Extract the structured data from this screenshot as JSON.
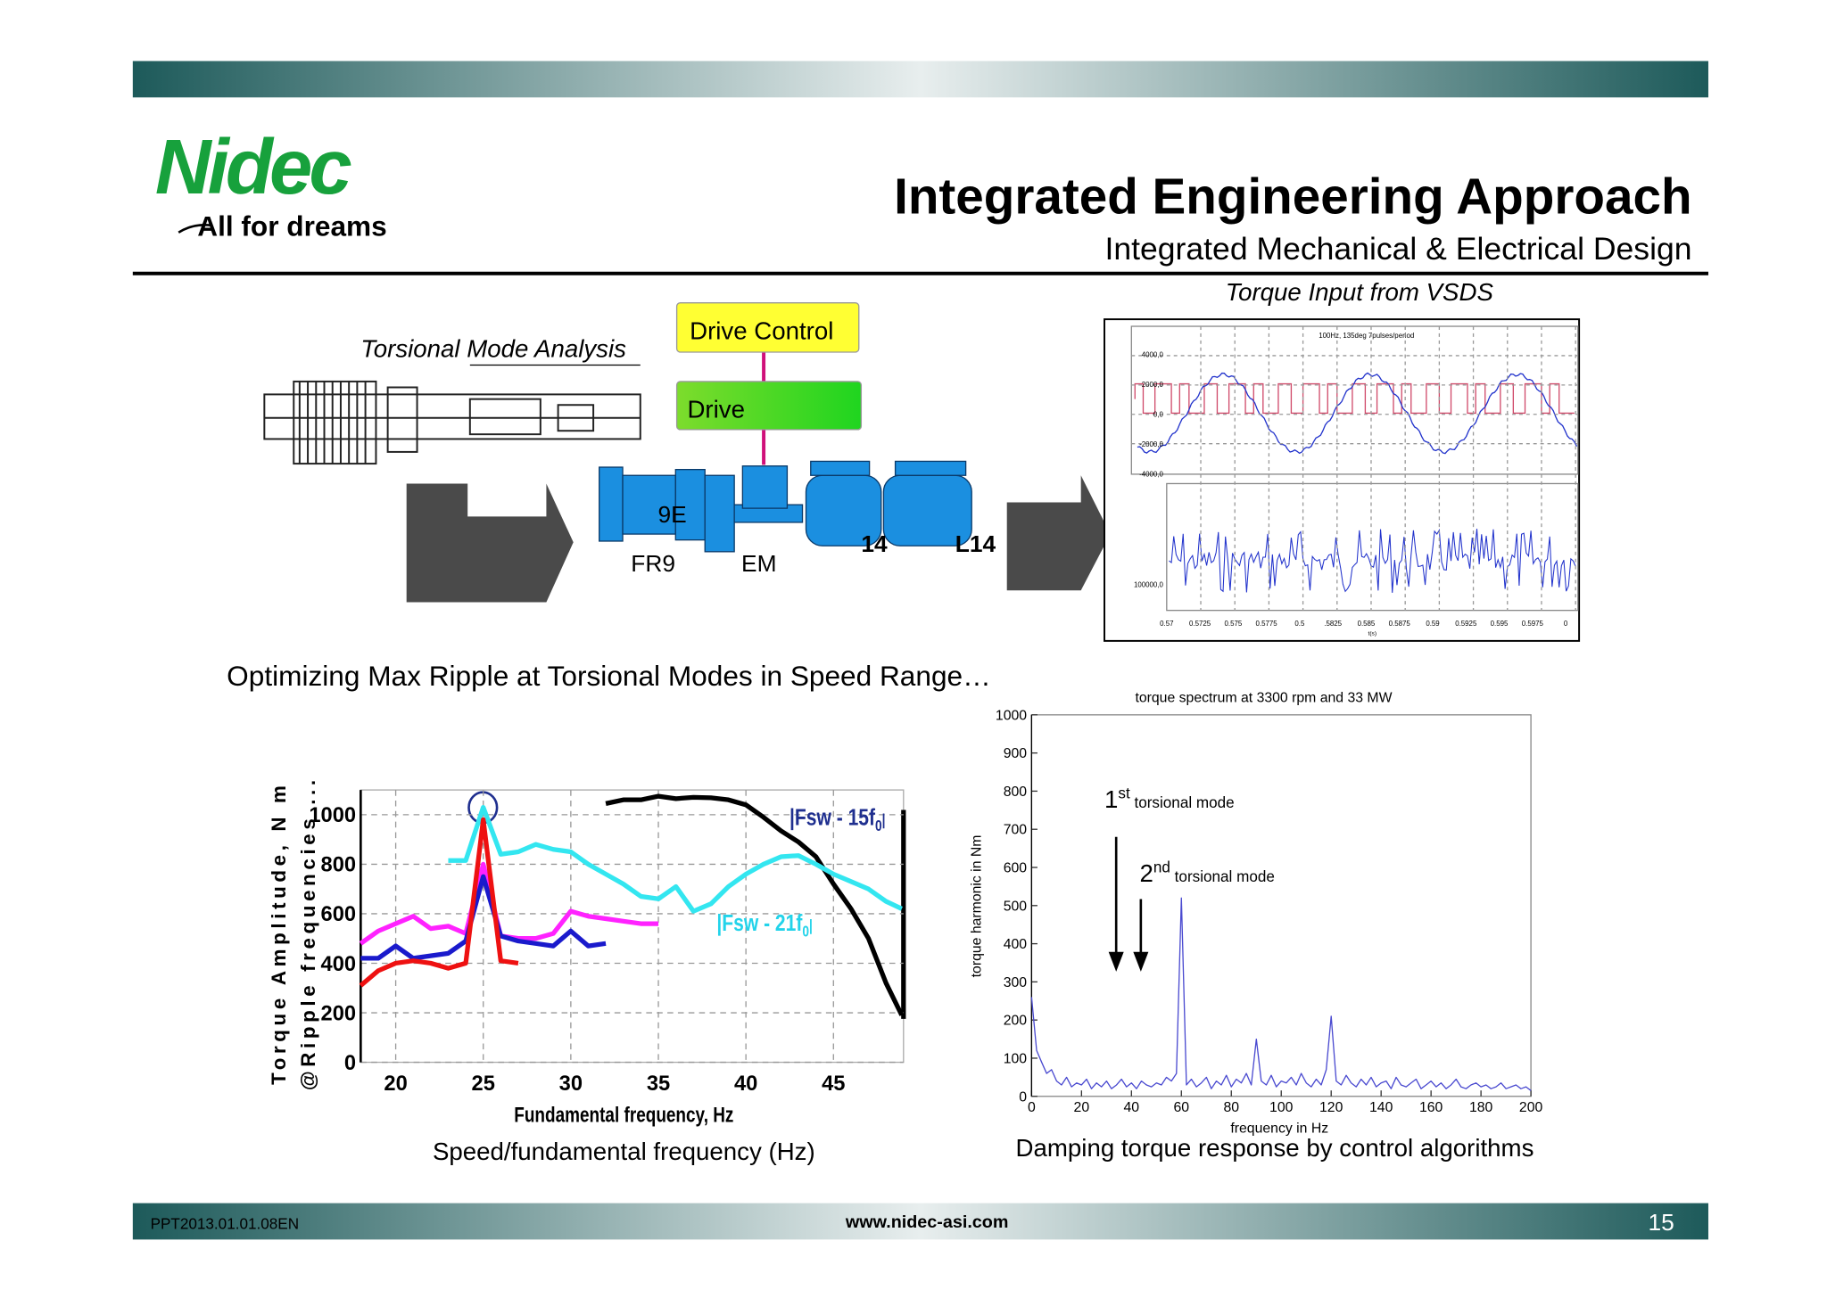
{
  "header": {
    "logo": "Nidec",
    "tagline": "All for dreams",
    "title": "Integrated Engineering Approach",
    "subtitle": "Integrated Mechanical & Electrical Design"
  },
  "diagram": {
    "torsional_label": "Torsional Mode Analysis",
    "drive_control": "Drive Control",
    "drive": "Drive",
    "machines": [
      "9E",
      "FR9",
      "EM",
      "14",
      "L14"
    ]
  },
  "scope": {
    "caption": "Torque Input from VSDS",
    "title": "100Hz, 135deg 7pulses/period",
    "upper_yticks": [
      "4000,0",
      "2000,0",
      "0,0",
      "-2000,0",
      "-4000,0"
    ],
    "lower_ytick": "100000,0",
    "xticks": [
      "0.57",
      "0.5725",
      "0.575",
      "0.5775",
      "0.5",
      ".5825",
      "0.585",
      "0.5875",
      "0.59",
      "0.5925",
      "0.595",
      "0.5975",
      "0"
    ],
    "xlabel": "t(s)"
  },
  "ripple_heading": "Optimizing Max Ripple at Torsional Modes in Speed Range…",
  "chart_data": [
    {
      "type": "line",
      "xlabel": "Fundamental frequency, Hz",
      "ylabel": [
        "Torque Amplitude, N m",
        "@Ripple frequencies ..."
      ],
      "caption": "Speed/fundamental frequency (Hz)",
      "xlim": [
        18,
        49
      ],
      "ylim": [
        0,
        1100
      ],
      "xticks": [
        20,
        25,
        30,
        35,
        40,
        45
      ],
      "yticks": [
        0,
        200,
        400,
        600,
        800,
        1000
      ],
      "grid": true,
      "series": [
        {
          "color": "#000000",
          "x": [
            32,
            33,
            34,
            35,
            36,
            37,
            38,
            39,
            40,
            41,
            42,
            43,
            44,
            45,
            46,
            47,
            48,
            48.9
          ],
          "values": [
            1045,
            1060,
            1060,
            1075,
            1065,
            1070,
            1068,
            1060,
            1040,
            990,
            935,
            890,
            830,
            720,
            620,
            500,
            320,
            190
          ]
        },
        {
          "color": "#33e6f0",
          "x": [
            23,
            24,
            25,
            26,
            27,
            28,
            29,
            30,
            31,
            32,
            33,
            34,
            35,
            36,
            37,
            38,
            39,
            40,
            41,
            42,
            43,
            44,
            45,
            46,
            47,
            48,
            48.9
          ],
          "values": [
            815,
            815,
            1030,
            840,
            850,
            880,
            860,
            850,
            800,
            760,
            720,
            670,
            660,
            710,
            610,
            640,
            710,
            760,
            800,
            830,
            835,
            800,
            760,
            730,
            700,
            650,
            620
          ]
        },
        {
          "color": "#ff22ff",
          "x": [
            18,
            19,
            20,
            21,
            22,
            23,
            24,
            25,
            26,
            27,
            28,
            29,
            30,
            31,
            32,
            33,
            34,
            35
          ],
          "values": [
            480,
            530,
            560,
            590,
            540,
            550,
            520,
            800,
            510,
            500,
            500,
            520,
            610,
            590,
            580,
            570,
            560,
            560
          ]
        },
        {
          "color": "#1a1acc",
          "x": [
            18,
            19,
            20,
            21,
            22,
            23,
            24,
            25,
            26,
            27,
            28,
            29,
            30,
            31,
            32
          ],
          "values": [
            420,
            420,
            470,
            420,
            430,
            440,
            490,
            750,
            510,
            490,
            480,
            470,
            530,
            470,
            480
          ]
        },
        {
          "color": "#ee1111",
          "x": [
            18,
            19,
            20,
            21,
            22,
            23,
            24,
            25,
            26,
            27
          ],
          "values": [
            310,
            370,
            400,
            410,
            400,
            380,
            400,
            980,
            410,
            400
          ]
        }
      ],
      "annotations": [
        {
          "text": "|Fsw - 15f",
          "sub": "0",
          "end": "|",
          "color": "#1f2f8f"
        },
        {
          "text": "|Fsw - 21f",
          "sub": "0",
          "end": "|",
          "color": "#22d3ea"
        }
      ]
    },
    {
      "type": "line",
      "title": "torque spectrum at 3300 rpm and 33 MW",
      "xlabel": "frequency in Hz",
      "ylabel": "torque harmonic in Nm",
      "caption": "Damping torque response by control algorithms",
      "xlim": [
        0,
        200
      ],
      "ylim": [
        0,
        1000
      ],
      "xticks": [
        0,
        20,
        40,
        60,
        80,
        100,
        120,
        140,
        160,
        180,
        200
      ],
      "yticks": [
        0,
        100,
        200,
        300,
        400,
        500,
        600,
        700,
        800,
        900,
        1000
      ],
      "grid": false,
      "x": [
        0,
        2,
        4,
        6,
        8,
        10,
        12,
        14,
        16,
        18,
        20,
        22,
        24,
        26,
        28,
        30,
        32,
        34,
        36,
        38,
        40,
        42,
        44,
        46,
        48,
        50,
        52,
        54,
        56,
        58,
        60,
        62,
        64,
        66,
        68,
        70,
        72,
        74,
        76,
        78,
        80,
        82,
        84,
        86,
        88,
        90,
        92,
        94,
        96,
        98,
        100,
        102,
        104,
        106,
        108,
        110,
        112,
        114,
        116,
        118,
        120,
        122,
        124,
        126,
        128,
        130,
        132,
        134,
        136,
        138,
        140,
        142,
        144,
        146,
        148,
        150,
        152,
        154,
        156,
        158,
        160,
        162,
        164,
        166,
        168,
        170,
        172,
        174,
        176,
        178,
        180,
        182,
        184,
        186,
        188,
        190,
        192,
        194,
        196,
        198,
        200
      ],
      "series": [
        {
          "color": "#4a4ad0",
          "values": [
            260,
            120,
            90,
            60,
            70,
            40,
            30,
            50,
            25,
            35,
            30,
            45,
            20,
            35,
            25,
            40,
            20,
            30,
            45,
            25,
            35,
            20,
            40,
            30,
            25,
            35,
            30,
            50,
            40,
            60,
            520,
            30,
            45,
            25,
            35,
            50,
            20,
            40,
            30,
            55,
            25,
            45,
            35,
            60,
            30,
            150,
            40,
            30,
            55,
            25,
            40,
            35,
            50,
            30,
            60,
            35,
            25,
            45,
            30,
            70,
            210,
            40,
            30,
            55,
            35,
            25,
            45,
            30,
            50,
            25,
            35,
            40,
            20,
            50,
            30,
            25,
            35,
            45,
            20,
            30,
            40,
            25,
            35,
            20,
            30,
            45,
            25,
            20,
            30,
            35,
            25,
            30,
            20,
            25,
            35,
            20,
            25,
            30,
            20,
            25,
            15
          ]
        }
      ],
      "annotations": [
        {
          "num": "1",
          "sup": "st",
          "text": " torsional mode"
        },
        {
          "num": "2",
          "sup": "nd",
          "text": " torsional mode"
        }
      ]
    }
  ],
  "footer": {
    "code": "PPT2013.01.01.08EN",
    "url": "www.nidec-asi.com",
    "page": "15"
  }
}
